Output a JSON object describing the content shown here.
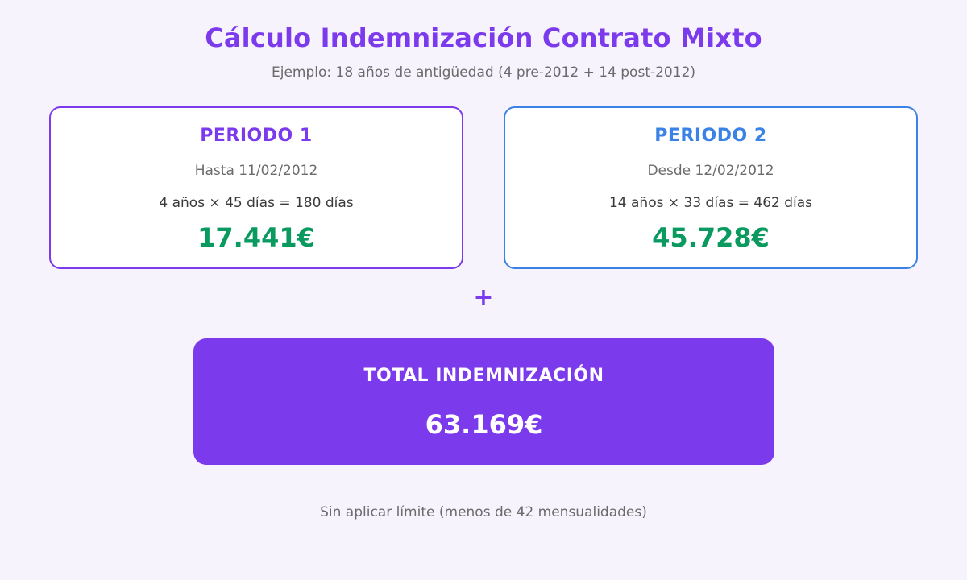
{
  "header": {
    "title": "Cálculo Indemnización Contrato Mixto",
    "subtitle": "Ejemplo: 18 años de antigüedad (4 pre-2012 + 14 post-2012)"
  },
  "periods": [
    {
      "title": "PERIODO 1",
      "date": "Hasta 11/02/2012",
      "formula": "4 años × 45 días = 180 días",
      "amount": "17.441€",
      "border_color": "#7c3aed"
    },
    {
      "title": "PERIODO 2",
      "date": "Desde 12/02/2012",
      "formula": "14 años × 33 días = 462 días",
      "amount": "45.728€",
      "border_color": "#3b82e6"
    }
  ],
  "operator": "+",
  "total": {
    "label": "TOTAL INDEMNIZACIÓN",
    "amount": "63.169€",
    "background": "#7c3aed"
  },
  "note": "Sin aplicar límite (menos de 42 mensualidades)",
  "colors": {
    "accent": "#7c3aed",
    "secondary": "#3b82e6",
    "amount": "#0a9a5f",
    "background": "#f6f3fd"
  }
}
